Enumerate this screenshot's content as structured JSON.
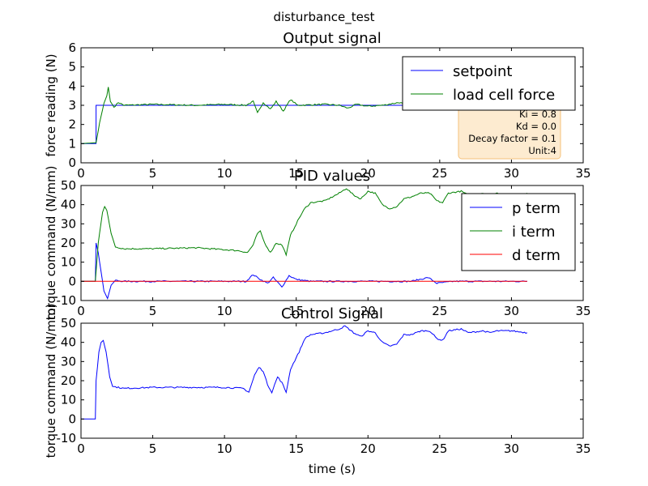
{
  "figure": {
    "suptitle": "disturbance_test"
  },
  "colors": {
    "blue": "#0000ff",
    "green": "#008000",
    "red": "#ff0000",
    "annot_bg": "#fdebd0",
    "annot_edge": "#f5c27a"
  },
  "chart_data": [
    {
      "type": "line",
      "title": "Output signal",
      "xlabel": "",
      "ylabel": "force reading (N)",
      "xlim": [
        0,
        35
      ],
      "ylim": [
        0,
        6
      ],
      "xticks": [
        0,
        5,
        10,
        15,
        20,
        25,
        30,
        35
      ],
      "yticks": [
        0,
        1,
        2,
        3,
        4,
        5,
        6
      ],
      "legend": "upper right",
      "annotation": [
        "Ki = 0.8",
        "Kd = 0.0",
        "Decay factor = 0.1",
        "Unit:4"
      ],
      "series": [
        {
          "name": "setpoint",
          "color": "#0000ff",
          "kind": "step",
          "points": [
            [
              0,
              1.0
            ],
            [
              1.05,
              1.0
            ],
            [
              1.05,
              3.0
            ],
            [
              31.1,
              3.0
            ]
          ]
        },
        {
          "name": "load cell force",
          "color": "#008000",
          "kind": "noisy",
          "points": [
            [
              0,
              1.0
            ],
            [
              1.05,
              1.05
            ],
            [
              1.3,
              2.1
            ],
            [
              1.6,
              3.1
            ],
            [
              1.8,
              3.5
            ],
            [
              1.9,
              3.95
            ],
            [
              2.05,
              3.2
            ],
            [
              2.3,
              2.9
            ],
            [
              2.6,
              3.15
            ],
            [
              3,
              3.0
            ],
            [
              5,
              3.05
            ],
            [
              8,
              3.0
            ],
            [
              10,
              3.05
            ],
            [
              11.5,
              3.0
            ],
            [
              12,
              3.2
            ],
            [
              12.3,
              2.6
            ],
            [
              12.7,
              3.15
            ],
            [
              13.2,
              2.8
            ],
            [
              13.6,
              3.2
            ],
            [
              14.1,
              2.7
            ],
            [
              14.6,
              3.3
            ],
            [
              15.1,
              3.0
            ],
            [
              17,
              3.05
            ],
            [
              18,
              3.0
            ],
            [
              18.6,
              2.85
            ],
            [
              19.2,
              3.05
            ],
            [
              20,
              2.95
            ],
            [
              21,
              3.0
            ],
            [
              22.2,
              3.15
            ],
            [
              23,
              2.9
            ],
            [
              24,
              3.0
            ],
            [
              25,
              2.8
            ]
          ]
        }
      ]
    },
    {
      "type": "line",
      "title": "PID values",
      "xlabel": "",
      "ylabel": "torque command (N/mm)",
      "xlim": [
        0,
        35
      ],
      "ylim": [
        -10,
        50
      ],
      "xticks": [
        0,
        5,
        10,
        15,
        20,
        25,
        30,
        35
      ],
      "yticks": [
        -10,
        0,
        10,
        20,
        30,
        40,
        50
      ],
      "legend": "upper right",
      "series": [
        {
          "name": "p term",
          "color": "#0000ff",
          "kind": "noisy",
          "points": [
            [
              0,
              0
            ],
            [
              1.0,
              0
            ],
            [
              1.05,
              20
            ],
            [
              1.2,
              15
            ],
            [
              1.4,
              5
            ],
            [
              1.6,
              -5
            ],
            [
              1.85,
              -9
            ],
            [
              2.1,
              -2
            ],
            [
              2.4,
              0.5
            ],
            [
              3,
              0
            ],
            [
              11.5,
              0
            ],
            [
              12,
              3.5
            ],
            [
              12.5,
              1
            ],
            [
              13,
              -1
            ],
            [
              13.4,
              2
            ],
            [
              14,
              -3
            ],
            [
              14.5,
              3
            ],
            [
              15,
              1
            ],
            [
              16,
              0
            ],
            [
              19,
              0
            ],
            [
              23,
              0
            ],
            [
              24.2,
              2
            ],
            [
              24.8,
              -1
            ],
            [
              26,
              0
            ],
            [
              31.1,
              0
            ]
          ]
        },
        {
          "name": "i term",
          "color": "#008000",
          "kind": "noisy",
          "points": [
            [
              0,
              0
            ],
            [
              1.0,
              0
            ],
            [
              1.2,
              20
            ],
            [
              1.5,
              36
            ],
            [
              1.65,
              39
            ],
            [
              1.8,
              37
            ],
            [
              2.1,
              25
            ],
            [
              2.4,
              18
            ],
            [
              3,
              17
            ],
            [
              5,
              17
            ],
            [
              8,
              17.5
            ],
            [
              10,
              16.5
            ],
            [
              11,
              16
            ],
            [
              11.6,
              15
            ],
            [
              12,
              19
            ],
            [
              12.3,
              25
            ],
            [
              12.5,
              26
            ],
            [
              12.8,
              20
            ],
            [
              13.2,
              15
            ],
            [
              13.6,
              20
            ],
            [
              14,
              19
            ],
            [
              14.3,
              14
            ],
            [
              14.6,
              24
            ],
            [
              15.2,
              33
            ],
            [
              15.6,
              38
            ],
            [
              16,
              41
            ],
            [
              17,
              42
            ],
            [
              18,
              46
            ],
            [
              18.5,
              48.5
            ],
            [
              19,
              45
            ],
            [
              19.5,
              43
            ],
            [
              20,
              47
            ],
            [
              20.5,
              46
            ],
            [
              21,
              40
            ],
            [
              21.5,
              38
            ],
            [
              22,
              39
            ],
            [
              22.5,
              43
            ],
            [
              23,
              44
            ],
            [
              23.7,
              46
            ],
            [
              24.3,
              46
            ],
            [
              24.8,
              42
            ],
            [
              25.2,
              41
            ],
            [
              25.6,
              46
            ],
            [
              26.5,
              47
            ],
            [
              27,
              45
            ],
            [
              28,
              46
            ],
            [
              28.5,
              45
            ],
            [
              29,
              46
            ],
            [
              30,
              45
            ],
            [
              31.1,
              46
            ]
          ]
        },
        {
          "name": "d term",
          "color": "#ff0000",
          "kind": "step",
          "points": [
            [
              0,
              0
            ],
            [
              31.1,
              0
            ]
          ]
        }
      ]
    },
    {
      "type": "line",
      "title": "Control Signal",
      "xlabel": "time (s)",
      "ylabel": "torque command (N/mm)",
      "xlim": [
        0,
        35
      ],
      "ylim": [
        -10,
        50
      ],
      "xticks": [
        0,
        5,
        10,
        15,
        20,
        25,
        30,
        35
      ],
      "yticks": [
        -10,
        0,
        10,
        20,
        30,
        40,
        50
      ],
      "series": [
        {
          "name": "",
          "color": "#0000ff",
          "kind": "noisy",
          "points": [
            [
              0,
              0
            ],
            [
              1.0,
              0
            ],
            [
              1.05,
              20
            ],
            [
              1.25,
              35
            ],
            [
              1.4,
              40
            ],
            [
              1.55,
              41
            ],
            [
              1.75,
              35
            ],
            [
              2.0,
              22
            ],
            [
              2.2,
              17
            ],
            [
              3,
              16
            ],
            [
              5,
              16.5
            ],
            [
              8,
              16.5
            ],
            [
              10,
              16.5
            ],
            [
              11.3,
              16
            ],
            [
              11.7,
              14
            ],
            [
              12.1,
              23
            ],
            [
              12.4,
              27
            ],
            [
              12.7,
              25
            ],
            [
              13,
              18
            ],
            [
              13.3,
              14
            ],
            [
              13.7,
              22
            ],
            [
              14.0,
              19
            ],
            [
              14.3,
              14
            ],
            [
              14.6,
              26
            ],
            [
              15.2,
              35
            ],
            [
              15.6,
              42
            ],
            [
              16,
              44
            ],
            [
              17,
              45
            ],
            [
              18,
              47
            ],
            [
              18.4,
              48.5
            ],
            [
              19,
              45
            ],
            [
              19.5,
              43
            ],
            [
              20,
              46
            ],
            [
              20.5,
              45
            ],
            [
              21,
              40
            ],
            [
              21.5,
              38
            ],
            [
              22,
              39
            ],
            [
              22.5,
              44
            ],
            [
              23,
              44
            ],
            [
              23.7,
              46
            ],
            [
              24.3,
              46
            ],
            [
              24.8,
              42
            ],
            [
              25.2,
              41
            ],
            [
              25.6,
              46
            ],
            [
              26.5,
              47
            ],
            [
              27,
              45
            ],
            [
              28,
              46
            ],
            [
              28.5,
              45
            ],
            [
              29,
              46
            ],
            [
              30,
              46
            ],
            [
              31.1,
              45
            ]
          ]
        }
      ]
    }
  ]
}
